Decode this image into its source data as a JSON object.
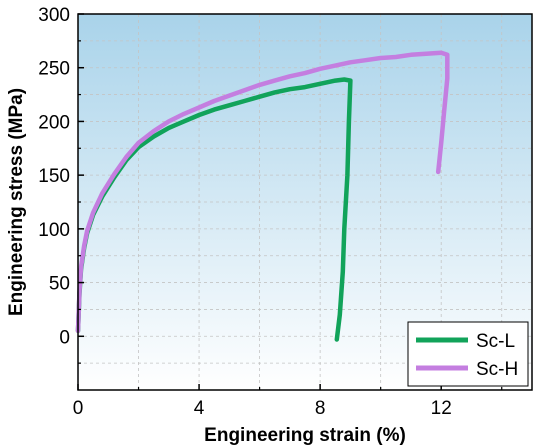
{
  "chart_data": {
    "type": "line",
    "xlabel": "Engineering strain (%)",
    "ylabel": "Engineering stress (MPa)",
    "xlim": [
      0,
      15
    ],
    "ylim": [
      -50,
      300
    ],
    "xticks": [
      0,
      4,
      8,
      12
    ],
    "yticks": [
      0,
      50,
      100,
      150,
      200,
      250,
      300
    ],
    "grid": true,
    "legend_position": "bottom-right",
    "background_gradient": [
      "#a9d3ea",
      "#ffffff"
    ],
    "series": [
      {
        "name": "Sc-L",
        "color": "#11a35a",
        "points": [
          [
            0.0,
            5
          ],
          [
            0.05,
            40
          ],
          [
            0.1,
            62
          ],
          [
            0.2,
            82
          ],
          [
            0.3,
            96
          ],
          [
            0.5,
            113
          ],
          [
            0.8,
            130
          ],
          [
            1.2,
            148
          ],
          [
            1.6,
            164
          ],
          [
            2.0,
            176
          ],
          [
            2.5,
            186
          ],
          [
            3.0,
            194
          ],
          [
            3.5,
            200
          ],
          [
            4.0,
            206
          ],
          [
            4.5,
            211
          ],
          [
            5.0,
            215
          ],
          [
            5.5,
            219
          ],
          [
            6.0,
            223
          ],
          [
            6.5,
            227
          ],
          [
            7.0,
            230
          ],
          [
            7.5,
            232
          ],
          [
            8.0,
            235
          ],
          [
            8.5,
            238
          ],
          [
            8.8,
            239
          ],
          [
            9.0,
            238
          ],
          [
            8.95,
            200
          ],
          [
            8.9,
            150
          ],
          [
            8.8,
            100
          ],
          [
            8.75,
            60
          ],
          [
            8.65,
            20
          ],
          [
            8.55,
            -3
          ]
        ]
      },
      {
        "name": "Sc-H",
        "color": "#c47ee0",
        "points": [
          [
            0.0,
            5
          ],
          [
            0.05,
            42
          ],
          [
            0.1,
            64
          ],
          [
            0.2,
            84
          ],
          [
            0.3,
            98
          ],
          [
            0.5,
            115
          ],
          [
            0.8,
            133
          ],
          [
            1.2,
            151
          ],
          [
            1.6,
            167
          ],
          [
            2.0,
            180
          ],
          [
            2.5,
            191
          ],
          [
            3.0,
            200
          ],
          [
            3.5,
            207
          ],
          [
            4.0,
            213
          ],
          [
            4.5,
            219
          ],
          [
            5.0,
            224
          ],
          [
            5.5,
            229
          ],
          [
            6.0,
            234
          ],
          [
            6.5,
            238
          ],
          [
            7.0,
            242
          ],
          [
            7.5,
            245
          ],
          [
            8.0,
            249
          ],
          [
            8.5,
            252
          ],
          [
            9.0,
            255
          ],
          [
            9.5,
            257
          ],
          [
            10.0,
            259
          ],
          [
            10.5,
            260
          ],
          [
            11.0,
            262
          ],
          [
            11.5,
            263
          ],
          [
            12.0,
            264
          ],
          [
            12.2,
            262
          ],
          [
            12.2,
            240
          ],
          [
            12.1,
            210
          ],
          [
            12.0,
            180
          ],
          [
            11.9,
            153
          ]
        ]
      }
    ]
  }
}
